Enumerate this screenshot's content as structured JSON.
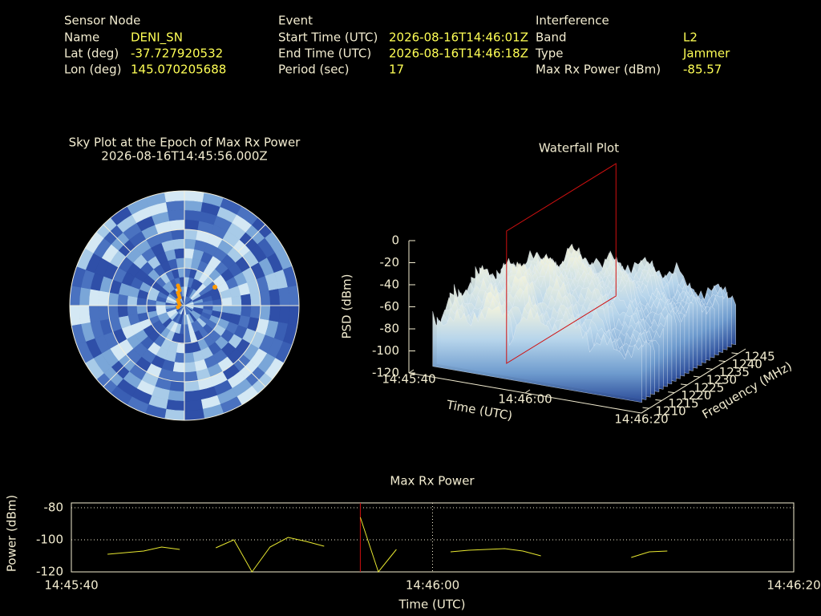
{
  "info": {
    "sensor_node": {
      "heading": "Sensor Node",
      "rows": [
        {
          "label": "Name",
          "value": "DENI_SN"
        },
        {
          "label": "Lat (deg)",
          "value": "-37.727920532"
        },
        {
          "label": "Lon (deg)",
          "value": "145.070205688"
        }
      ]
    },
    "event": {
      "heading": "Event",
      "rows": [
        {
          "label": "Start Time (UTC)",
          "value": "2026-08-16T14:46:01Z"
        },
        {
          "label": "End Time (UTC)",
          "value": "2026-08-16T14:46:18Z"
        },
        {
          "label": "Period (sec)",
          "value": "17"
        }
      ]
    },
    "interference": {
      "heading": "Interference",
      "rows": [
        {
          "label": "Band",
          "value": "L2"
        },
        {
          "label": "Type",
          "value": "Jammer"
        },
        {
          "label": "Max Rx Power (dBm)",
          "value": "-85.57"
        }
      ]
    }
  },
  "sky_plot": {
    "title": "Sky Plot at the Epoch of Max Rx Power",
    "subtitle": "2026-08-16T14:45:56.000Z"
  },
  "waterfall": {
    "title": "Waterfall Plot",
    "zlabel": "PSD (dBm)",
    "xlabel": "Time (UTC)",
    "ylabel": "Frequency (MHz)",
    "zlim": [
      -120,
      0
    ],
    "zticks": [
      0,
      -20,
      -40,
      -60,
      -80,
      -100,
      -120
    ],
    "xlim": [
      "14:45:40",
      "14:46:20"
    ],
    "xticks": [
      "14:45:40",
      "14:46:00",
      "14:46:20"
    ],
    "ylim": [
      1207,
      1248
    ],
    "yticks": [
      1210,
      1215,
      1220,
      1225,
      1230,
      1235,
      1240,
      1245
    ]
  },
  "chart_data": {
    "type": "line",
    "title": "Max Rx Power",
    "x_label": "Time (UTC)",
    "y_label": "Power (dBm)",
    "x": [
      "14:45:42",
      "14:45:43",
      "14:45:44",
      "14:45:45",
      "14:45:46",
      "14:45:47",
      "14:45:48",
      "14:45:49",
      "14:45:50",
      "14:45:51",
      "14:45:52",
      "14:45:53",
      "14:45:54",
      "14:45:55",
      "14:45:56",
      "14:45:57",
      "14:45:58",
      "14:45:59",
      "14:46:01",
      "14:46:02",
      "14:46:03",
      "14:46:04",
      "14:46:05",
      "14:46:06",
      "14:46:07",
      "14:46:11",
      "14:46:12",
      "14:46:13"
    ],
    "series": [
      {
        "name": "Max Rx Power",
        "color": "#e8e830",
        "values": [
          -109,
          -108,
          -107,
          -104.5,
          -106,
          null,
          -105,
          -100,
          -120,
          -104.5,
          -98.5,
          -101,
          -104,
          null,
          -86,
          -120,
          -106,
          null,
          -107.5,
          -106.5,
          -106,
          -105.5,
          -107,
          -110,
          null,
          -111,
          -107.5,
          -107
        ]
      }
    ],
    "xlim": [
      "14:45:40",
      "14:46:20"
    ],
    "xticks": [
      "14:45:40",
      "14:46:00",
      "14:46:20"
    ],
    "ylim": [
      -120,
      -77
    ],
    "yticks": [
      -80,
      -100,
      -120
    ],
    "marker_x": "14:45:56",
    "marker_color": "#d01010",
    "grid": true
  }
}
